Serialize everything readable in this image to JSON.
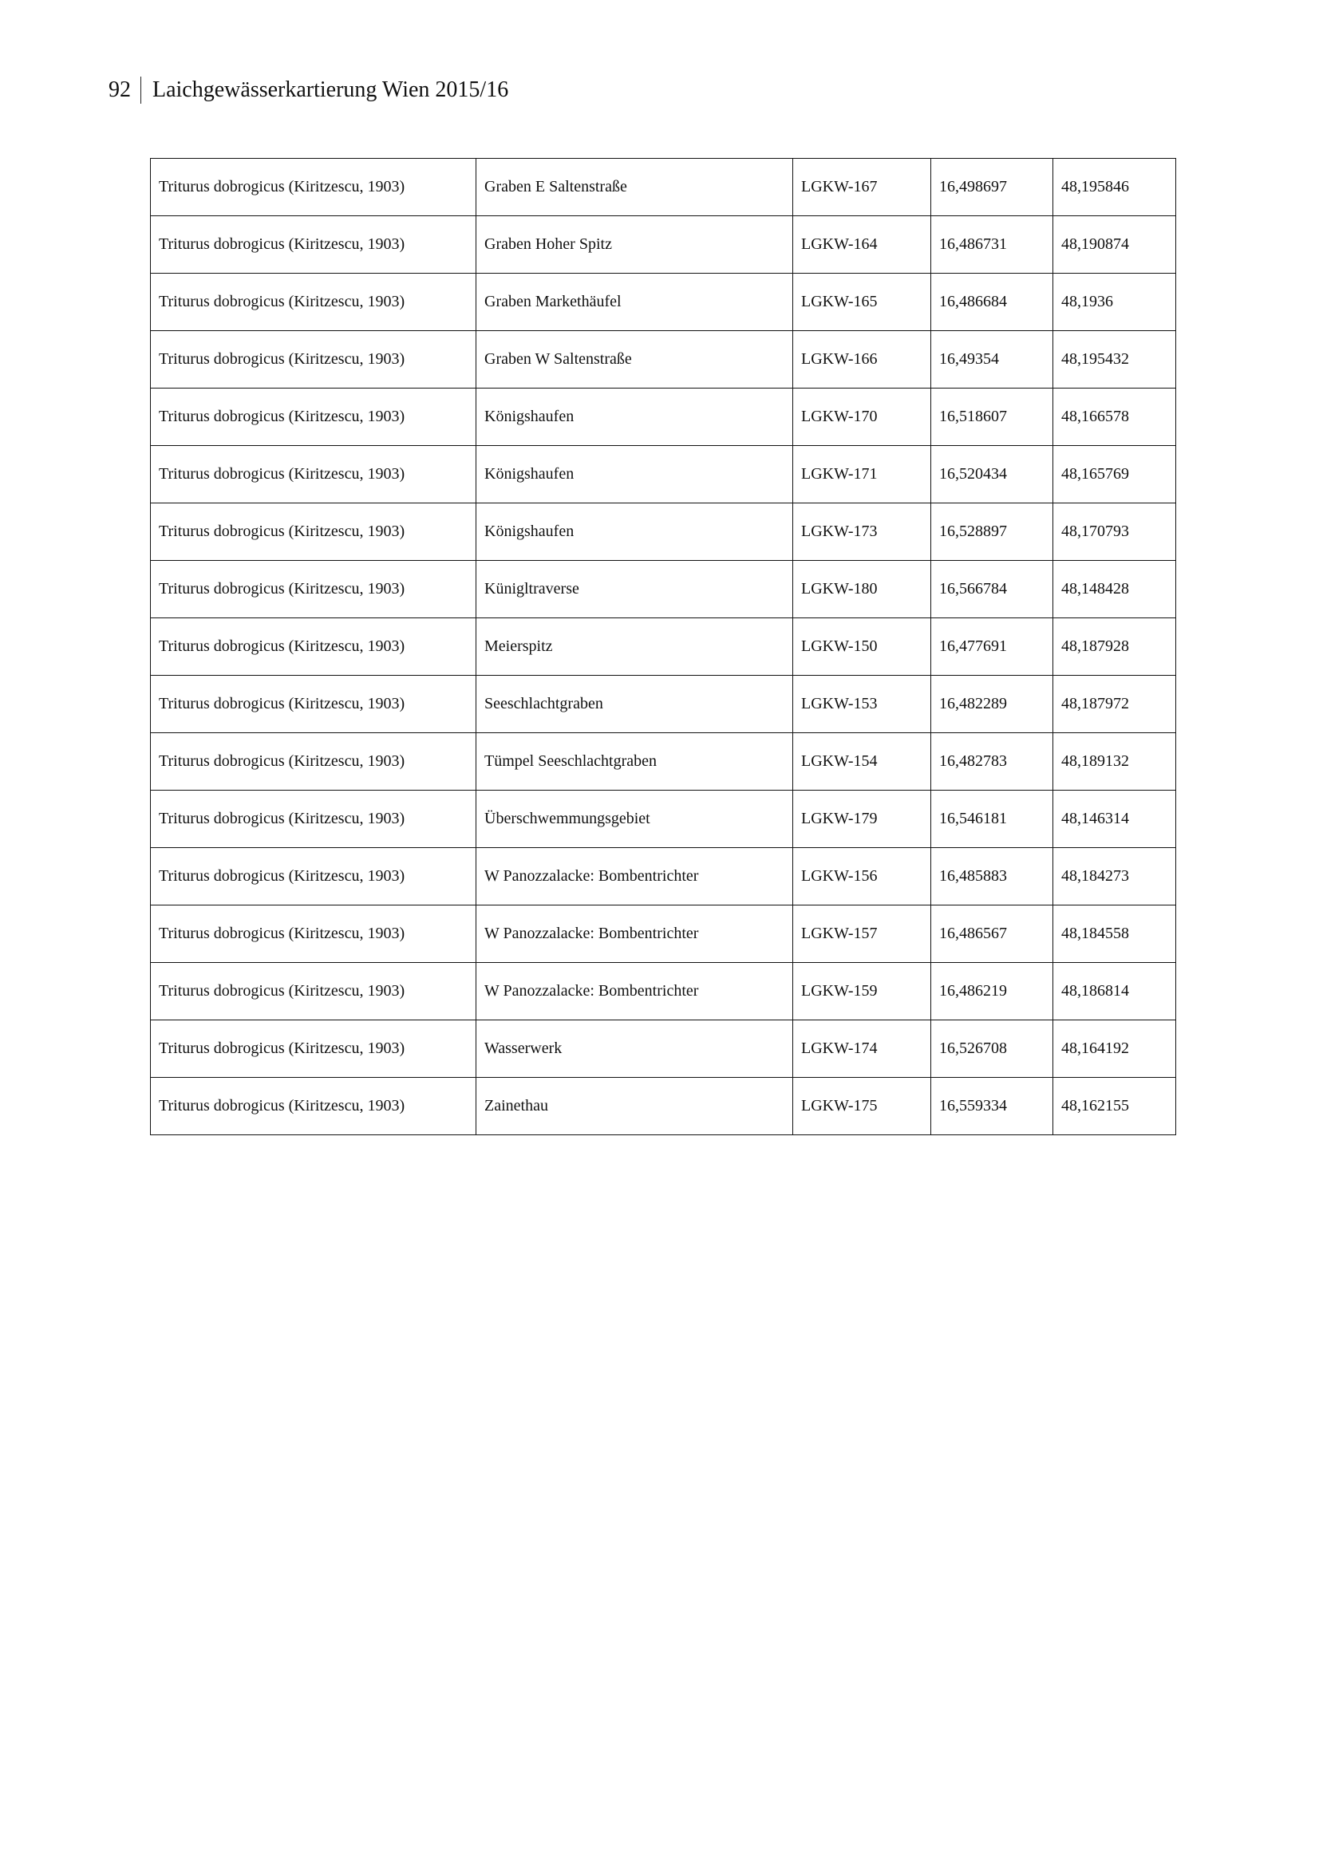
{
  "header": {
    "page_number": "92",
    "title": "Laichgewässerkartierung Wien 2015/16"
  },
  "table": {
    "rows": [
      [
        "Triturus dobrogicus (Kiritzescu, 1903)",
        "Graben E Saltenstraße",
        "LGKW-167",
        "16,498697",
        "48,195846"
      ],
      [
        "Triturus dobrogicus (Kiritzescu, 1903)",
        "Graben Hoher Spitz",
        "LGKW-164",
        "16,486731",
        "48,190874"
      ],
      [
        "Triturus dobrogicus (Kiritzescu, 1903)",
        "Graben Markethäufel",
        "LGKW-165",
        "16,486684",
        "48,1936"
      ],
      [
        "Triturus dobrogicus (Kiritzescu, 1903)",
        "Graben W Saltenstraße",
        "LGKW-166",
        "16,49354",
        "48,195432"
      ],
      [
        "Triturus dobrogicus (Kiritzescu, 1903)",
        "Königshaufen",
        "LGKW-170",
        "16,518607",
        "48,166578"
      ],
      [
        "Triturus dobrogicus (Kiritzescu, 1903)",
        "Königshaufen",
        "LGKW-171",
        "16,520434",
        "48,165769"
      ],
      [
        "Triturus dobrogicus (Kiritzescu, 1903)",
        "Königshaufen",
        "LGKW-173",
        "16,528897",
        "48,170793"
      ],
      [
        "Triturus dobrogicus (Kiritzescu, 1903)",
        "Künigltraverse",
        "LGKW-180",
        "16,566784",
        "48,148428"
      ],
      [
        "Triturus dobrogicus (Kiritzescu, 1903)",
        "Meierspitz",
        "LGKW-150",
        "16,477691",
        "48,187928"
      ],
      [
        "Triturus dobrogicus (Kiritzescu, 1903)",
        "Seeschlachtgraben",
        "LGKW-153",
        "16,482289",
        "48,187972"
      ],
      [
        "Triturus dobrogicus (Kiritzescu, 1903)",
        "Tümpel Seeschlachtgraben",
        "LGKW-154",
        "16,482783",
        "48,189132"
      ],
      [
        "Triturus dobrogicus (Kiritzescu, 1903)",
        "Überschwemmungsgebiet",
        "LGKW-179",
        "16,546181",
        "48,146314"
      ],
      [
        "Triturus dobrogicus (Kiritzescu, 1903)",
        "W Panozzalacke: Bombentrichter",
        "LGKW-156",
        "16,485883",
        "48,184273"
      ],
      [
        "Triturus dobrogicus (Kiritzescu, 1903)",
        "W Panozzalacke: Bombentrichter",
        "LGKW-157",
        "16,486567",
        "48,184558"
      ],
      [
        "Triturus dobrogicus (Kiritzescu, 1903)",
        "W Panozzalacke: Bombentrichter",
        "LGKW-159",
        "16,486219",
        "48,186814"
      ],
      [
        "Triturus dobrogicus (Kiritzescu, 1903)",
        "Wasserwerk",
        "LGKW-174",
        "16,526708",
        "48,164192"
      ],
      [
        "Triturus dobrogicus (Kiritzescu, 1903)",
        "Zainethau",
        "LGKW-175",
        "16,559334",
        "48,162155"
      ]
    ]
  }
}
